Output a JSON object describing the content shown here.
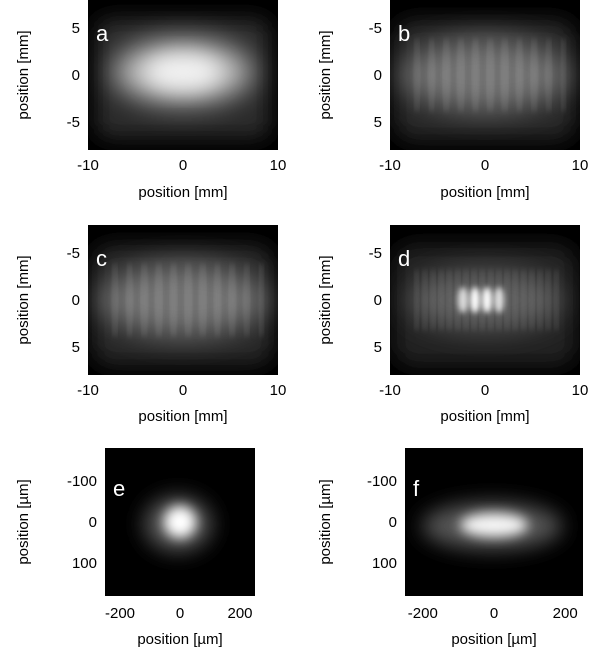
{
  "chart_data": [
    {
      "type": "heatmap",
      "label": "a",
      "xlabel": "position [mm]",
      "ylabel": "position [mm]",
      "xticks": [
        "-10",
        "0",
        "10"
      ],
      "yticks": [
        "5",
        "0",
        "-5"
      ],
      "xlim": [
        -10,
        10
      ],
      "ylim": [
        8,
        -8
      ],
      "profile": "uniform-top-hat",
      "cmap": "gray"
    },
    {
      "type": "heatmap",
      "label": "b",
      "xlabel": "position [mm]",
      "ylabel": "position [mm]",
      "xticks": [
        "-10",
        "0",
        "10"
      ],
      "yticks": [
        "-5",
        "0",
        "5"
      ],
      "xlim": [
        -10,
        10
      ],
      "ylim": [
        -8,
        8
      ],
      "profile": "striped-broad",
      "cmap": "gray"
    },
    {
      "type": "heatmap",
      "label": "c",
      "xlabel": "position [mm]",
      "ylabel": "position [mm]",
      "xticks": [
        "-10",
        "0",
        "10"
      ],
      "yticks": [
        "-5",
        "0",
        "5"
      ],
      "xlim": [
        -10,
        10
      ],
      "ylim": [
        -8,
        8
      ],
      "profile": "striped-broad",
      "cmap": "gray"
    },
    {
      "type": "heatmap",
      "label": "d",
      "xlabel": "position [mm]",
      "ylabel": "position [mm]",
      "xticks": [
        "-10",
        "0",
        "10"
      ],
      "yticks": [
        "-5",
        "0",
        "5"
      ],
      "xlim": [
        -10,
        10
      ],
      "ylim": [
        -8,
        8
      ],
      "profile": "fringes-with-bright-center",
      "cmap": "gray"
    },
    {
      "type": "heatmap",
      "label": "e",
      "xlabel": "position [µm]",
      "ylabel": "position [µm]",
      "xticks": [
        "-200",
        "0",
        "200"
      ],
      "yticks": [
        "-100",
        "0",
        "100"
      ],
      "xlim": [
        -250,
        250
      ],
      "ylim": [
        -180,
        180
      ],
      "profile": "small-round-spot",
      "cmap": "gray"
    },
    {
      "type": "heatmap",
      "label": "f",
      "xlabel": "position [µm]",
      "ylabel": "position [µm]",
      "xticks": [
        "-200",
        "0",
        "200"
      ],
      "yticks": [
        "-100",
        "0",
        "100"
      ],
      "xlim": [
        -250,
        250
      ],
      "ylim": [
        -180,
        180
      ],
      "profile": "elongated-spot",
      "cmap": "gray"
    }
  ]
}
